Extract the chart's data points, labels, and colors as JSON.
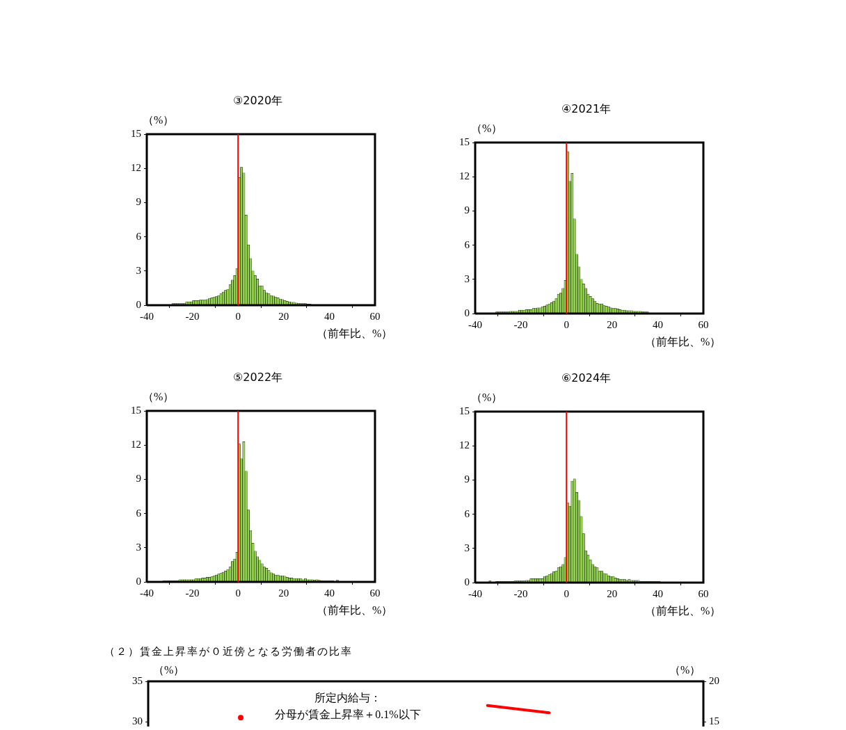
{
  "chart_data": [
    {
      "type": "histogram",
      "title": "③2020年",
      "ylabel": "（%）",
      "xlabel": "（前年比、%）",
      "color": "#92d050",
      "bins": [
        -29,
        -28,
        -27,
        -26,
        -25,
        -24,
        -23,
        -22,
        -21,
        -20,
        -19,
        -18,
        -17,
        -16,
        -15,
        -14,
        -13,
        -12,
        -11,
        -10,
        -9,
        -8,
        -7,
        -6,
        -5,
        -4,
        -3,
        -2,
        -1,
        0,
        1,
        2,
        3,
        4,
        5,
        6,
        7,
        8,
        9,
        10,
        11,
        12,
        13,
        14,
        15,
        16,
        17,
        18,
        19,
        20,
        21,
        22,
        23,
        24,
        25,
        26,
        27,
        28,
        29,
        30,
        31,
        32
      ],
      "values": [
        0.15,
        0.15,
        0.15,
        0.15,
        0.15,
        0.15,
        0.3,
        0.3,
        0.3,
        0.4,
        0.4,
        0.4,
        0.45,
        0.45,
        0.45,
        0.5,
        0.6,
        0.65,
        0.7,
        0.75,
        0.85,
        1.0,
        1.15,
        1.3,
        1.4,
        1.8,
        2.2,
        2.6,
        3.2,
        11.2,
        12.1,
        11.6,
        7.9,
        5.3,
        4.1,
        3.0,
        2.6,
        2.3,
        1.7,
        1.7,
        1.3,
        1.1,
        1.0,
        0.85,
        0.8,
        0.7,
        0.65,
        0.55,
        0.5,
        0.4,
        0.35,
        0.3,
        0.25,
        0.25,
        0.2,
        0.15,
        0.15,
        0.15,
        0.15,
        0.1,
        0.1
      ],
      "xlim": [
        -40,
        60
      ],
      "xticks": [
        -40,
        -20,
        0,
        20,
        40,
        60
      ],
      "ylim": [
        0,
        15
      ],
      "yticks": [
        0,
        3,
        6,
        9,
        12,
        15
      ],
      "ref_lines": [
        {
          "axis": "x",
          "value": 0,
          "color": "#ff0000"
        }
      ]
    },
    {
      "type": "histogram",
      "title": "④2021年",
      "ylabel": "（%）",
      "xlabel": "（前年比、%）",
      "color": "#92d050",
      "bins": [
        -31,
        -30,
        -29,
        -28,
        -27,
        -26,
        -25,
        -24,
        -23,
        -22,
        -21,
        -20,
        -19,
        -18,
        -17,
        -16,
        -15,
        -14,
        -13,
        -12,
        -11,
        -10,
        -9,
        -8,
        -7,
        -6,
        -5,
        -4,
        -3,
        -2,
        -1,
        0,
        1,
        2,
        3,
        4,
        5,
        6,
        7,
        8,
        9,
        10,
        11,
        12,
        13,
        14,
        15,
        16,
        17,
        18,
        19,
        20,
        21,
        22,
        23,
        24,
        25,
        26,
        27,
        28,
        29,
        30,
        31,
        32,
        33,
        34,
        35,
        36
      ],
      "values": [
        0.15,
        0.15,
        0.15,
        0.15,
        0.15,
        0.15,
        0.2,
        0.2,
        0.2,
        0.2,
        0.3,
        0.3,
        0.3,
        0.35,
        0.35,
        0.35,
        0.45,
        0.45,
        0.5,
        0.5,
        0.6,
        0.65,
        0.75,
        0.85,
        0.95,
        1.1,
        1.3,
        1.7,
        1.8,
        2.2,
        2.9,
        14.2,
        11.6,
        12.3,
        8.3,
        5.2,
        4.1,
        3.0,
        2.6,
        2.2,
        1.7,
        1.5,
        1.3,
        1.1,
        0.9,
        0.85,
        0.85,
        0.7,
        0.65,
        0.6,
        0.5,
        0.45,
        0.45,
        0.4,
        0.35,
        0.3,
        0.3,
        0.25,
        0.25,
        0.25,
        0.2,
        0.2,
        0.2,
        0.2,
        0.15,
        0.15,
        0.15
      ],
      "xlim": [
        -40,
        60
      ],
      "xticks": [
        -40,
        -20,
        0,
        20,
        40,
        60
      ],
      "ylim": [
        0,
        15
      ],
      "yticks": [
        0,
        3,
        6,
        9,
        12,
        15
      ],
      "ref_lines": [
        {
          "axis": "x",
          "value": 0,
          "color": "#ff0000"
        }
      ]
    },
    {
      "type": "histogram",
      "title": "⑤2022年",
      "ylabel": "（%）",
      "xlabel": "（前年比、%）",
      "color": "#92d050",
      "bins": [
        -33,
        -32,
        -31,
        -30,
        -29,
        -28,
        -27,
        -26,
        -25,
        -24,
        -23,
        -22,
        -21,
        -20,
        -19,
        -18,
        -17,
        -16,
        -15,
        -14,
        -13,
        -12,
        -11,
        -10,
        -9,
        -8,
        -7,
        -6,
        -5,
        -4,
        -3,
        -2,
        -1,
        0,
        1,
        2,
        3,
        4,
        5,
        6,
        7,
        8,
        9,
        10,
        11,
        12,
        13,
        14,
        15,
        16,
        17,
        18,
        19,
        20,
        21,
        22,
        23,
        24,
        25,
        26,
        27,
        28,
        29,
        30,
        31,
        32,
        33,
        34,
        35,
        36,
        37,
        38,
        39,
        40,
        41,
        42,
        43,
        44
      ],
      "values": [
        0.1,
        0.1,
        0.1,
        0.1,
        0.1,
        0.1,
        0.1,
        0.2,
        0.2,
        0.2,
        0.2,
        0.2,
        0.2,
        0.2,
        0.3,
        0.3,
        0.3,
        0.35,
        0.35,
        0.4,
        0.4,
        0.45,
        0.55,
        0.6,
        0.7,
        0.75,
        0.85,
        0.95,
        1.1,
        1.3,
        1.8,
        2.0,
        2.6,
        12.1,
        10.8,
        12.3,
        9.7,
        6.3,
        4.5,
        3.4,
        2.7,
        2.2,
        1.9,
        1.6,
        1.3,
        1.2,
        1.0,
        0.8,
        0.7,
        0.6,
        0.6,
        0.55,
        0.55,
        0.5,
        0.4,
        0.35,
        0.35,
        0.3,
        0.3,
        0.3,
        0.3,
        0.2,
        0.3,
        0.2,
        0.2,
        0.2,
        0.15,
        0.2,
        0.15,
        0.1,
        0.1,
        0.1,
        0.1,
        0.1,
        0.1,
        0,
        0.15
      ],
      "xlim": [
        -40,
        60
      ],
      "xticks": [
        -40,
        -20,
        0,
        20,
        40,
        60
      ],
      "ylim": [
        0,
        15
      ],
      "yticks": [
        0,
        3,
        6,
        9,
        12,
        15
      ],
      "ref_lines": [
        {
          "axis": "x",
          "value": 0,
          "color": "#ff0000"
        }
      ]
    },
    {
      "type": "histogram",
      "title": "⑥2024年",
      "ylabel": "（%）",
      "xlabel": "（前年比、%）",
      "color": "#92d050",
      "bins": [
        -34,
        -33,
        -32,
        -31,
        -30,
        -29,
        -28,
        -27,
        -26,
        -25,
        -24,
        -23,
        -22,
        -21,
        -20,
        -19,
        -18,
        -17,
        -16,
        -15,
        -14,
        -13,
        -12,
        -11,
        -10,
        -9,
        -8,
        -7,
        -6,
        -5,
        -4,
        -3,
        -2,
        -1,
        0,
        1,
        2,
        3,
        4,
        5,
        6,
        7,
        8,
        9,
        10,
        11,
        12,
        13,
        14,
        15,
        16,
        17,
        18,
        19,
        20,
        21,
        22,
        23,
        24,
        25,
        26,
        27,
        28,
        29,
        30,
        31,
        32,
        33,
        34,
        35,
        36,
        37,
        38,
        39,
        40,
        41
      ],
      "values": [
        0.15,
        0,
        0,
        0.1,
        0.1,
        0.1,
        0.1,
        0.1,
        0.1,
        0.1,
        0.1,
        0.15,
        0.15,
        0.15,
        0.15,
        0.15,
        0.2,
        0.2,
        0.35,
        0.35,
        0.35,
        0.35,
        0.35,
        0.35,
        0.55,
        0.6,
        0.7,
        0.8,
        0.95,
        1.0,
        1.3,
        1.4,
        1.6,
        2.2,
        7.0,
        6.7,
        8.9,
        9.1,
        7.9,
        7.2,
        5.8,
        4.3,
        2.8,
        2.4,
        2.0,
        1.6,
        1.4,
        1.3,
        1.0,
        1.0,
        0.8,
        0.75,
        0.6,
        0.55,
        0.55,
        0.4,
        0.35,
        0.3,
        0.3,
        0.3,
        0.2,
        0.3,
        0.2,
        0.2,
        0.2,
        0.2,
        0.1,
        0.1,
        0.1,
        0.1,
        0.1,
        0.1,
        0.1,
        0.1,
        0.1
      ],
      "xlim": [
        -40,
        60
      ],
      "xticks": [
        -40,
        -20,
        0,
        20,
        40,
        60
      ],
      "ylim": [
        0,
        15
      ],
      "yticks": [
        0,
        3,
        6,
        9,
        12,
        15
      ],
      "ref_lines": [
        {
          "axis": "x",
          "value": 0,
          "color": "#ff0000"
        }
      ]
    },
    {
      "type": "line",
      "title": "（２）賃金上昇率が０近傍となる労働者の比率",
      "ylabel": "（%）",
      "y2label": "（%）",
      "categories": [
        null,
        null,
        null,
        null,
        null,
        null,
        null,
        null,
        null
      ],
      "series": [
        {
          "color": "#ff0000",
          "values": [
            null,
            30.5,
            null,
            null,
            null,
            32.0,
            31.1,
            null,
            null
          ]
        }
      ],
      "ylim": [
        29.4,
        35
      ],
      "yticks": [
        30,
        35
      ],
      "y2lim": [
        14.4,
        20
      ],
      "y2ticks": [
        15,
        20
      ],
      "tick_labels": "y",
      "annotations": [
        "所定内給与：",
        "分母が賃金上昇率＋0.1%以下"
      ]
    }
  ]
}
